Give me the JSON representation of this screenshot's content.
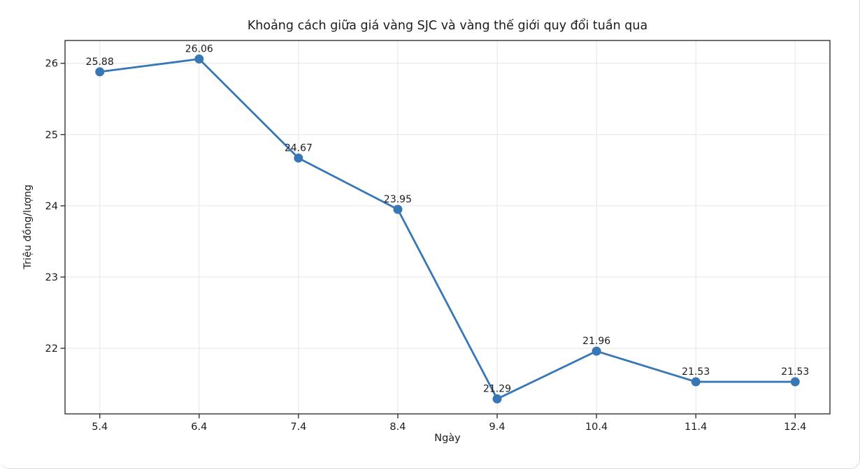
{
  "chart_data": {
    "type": "line",
    "title": "Khoảng cách giữa giá vàng SJC và vàng thế giới quy đổi tuần qua",
    "xlabel": "Ngày",
    "ylabel": "Triệu đồng/lượng",
    "categories": [
      "5.4",
      "6.4",
      "7.4",
      "8.4",
      "9.4",
      "10.4",
      "11.4",
      "12.4"
    ],
    "values": [
      25.88,
      26.06,
      24.67,
      23.95,
      21.29,
      21.96,
      21.53,
      21.53
    ],
    "point_labels": [
      "25.88",
      "26.06",
      "24.67",
      "23.95",
      "21.29",
      "21.96",
      "21.53",
      "21.53"
    ],
    "yticks": [
      22,
      23,
      24,
      25,
      26
    ],
    "ylim": [
      21.08,
      26.32
    ],
    "x_index_margin": 0.35,
    "grid": true,
    "legend_position": "none",
    "colors": {
      "line": "#3877b6",
      "marker": "#3877b6",
      "grid": "#e7e7e7",
      "spine": "#333333",
      "text": "#1b1b1b"
    }
  }
}
